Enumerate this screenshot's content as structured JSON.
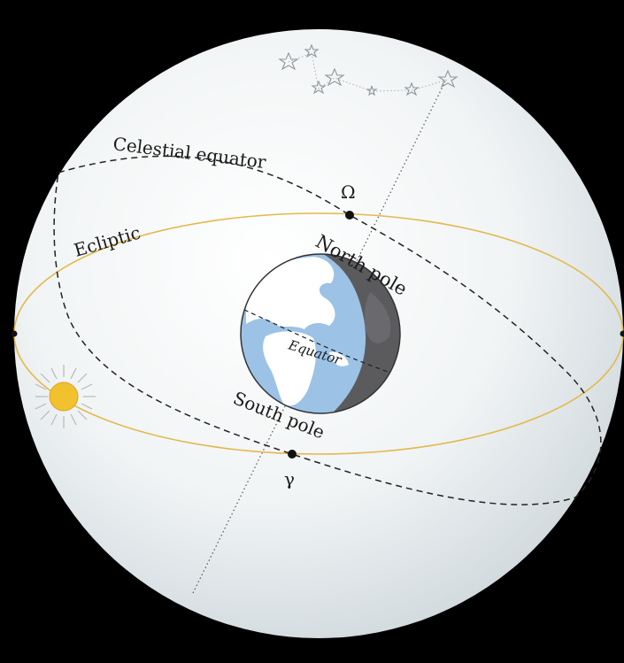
{
  "labels": {
    "celestial_equator": "Celestial equator",
    "ecliptic": "Ecliptic",
    "ascending_node": "Ω",
    "north_pole": "North pole",
    "equator": "Equator",
    "south_pole": "South pole",
    "vernal_point": "γ"
  },
  "colors": {
    "background": "#000000",
    "sphere_light": "#ffffff",
    "sphere_dark": "#c9d3d8",
    "ecliptic": "#e3b94a",
    "sun": "#f2c12e",
    "earth_ocean": "#9cc2e6",
    "earth_land": "#ffffff",
    "earth_night": "#5b5b5e",
    "line_dark": "#2a2a2a",
    "constellation": "#a9b0b5"
  },
  "icons": {
    "sun": "sun-icon",
    "earth": "earth-icon",
    "constellation": "constellation-stars"
  }
}
